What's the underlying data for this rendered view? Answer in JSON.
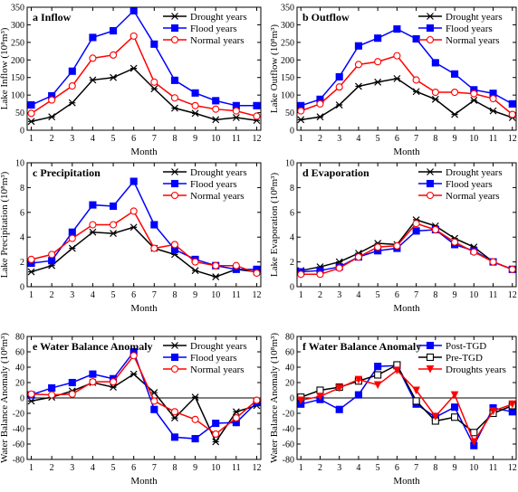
{
  "styles": {
    "Drought years": {
      "color": "#000000",
      "marker": "x",
      "fill": "none"
    },
    "Flood years": {
      "color": "#0000ff",
      "marker": "square",
      "fill": "#0000ff"
    },
    "Normal years": {
      "color": "#ff0000",
      "marker": "circle",
      "fill": "#ffffff"
    },
    "Post-TGD": {
      "color": "#0000ff",
      "marker": "square",
      "fill": "#0000ff"
    },
    "Pre-TGD": {
      "color": "#000000",
      "marker": "square",
      "fill": "#ffffff"
    },
    "Droughts years": {
      "color": "#ff0000",
      "marker": "triangle",
      "fill": "#ff0000"
    }
  },
  "chart_data": [
    {
      "panel": "a",
      "type": "line",
      "title": "Inflow",
      "xlabel": "Month",
      "ylabel": "Lake Inflow (10⁸m³)",
      "x": [
        1,
        2,
        3,
        4,
        5,
        6,
        7,
        8,
        9,
        10,
        11,
        12
      ],
      "xlim": [
        0.8,
        12.2
      ],
      "ylim": [
        0,
        350
      ],
      "yticks": [
        0,
        50,
        100,
        150,
        200,
        250,
        300,
        350
      ],
      "series": [
        {
          "name": "Drought years",
          "values": [
            25,
            38,
            78,
            143,
            150,
            176,
            118,
            63,
            48,
            30,
            36,
            28
          ]
        },
        {
          "name": "Flood years",
          "values": [
            72,
            98,
            168,
            264,
            283,
            340,
            245,
            142,
            106,
            84,
            70,
            70
          ]
        },
        {
          "name": "Normal years",
          "values": [
            48,
            86,
            126,
            205,
            214,
            268,
            137,
            92,
            70,
            60,
            55,
            40
          ]
        }
      ]
    },
    {
      "panel": "b",
      "type": "line",
      "title": "Outflow",
      "xlabel": "Month",
      "ylabel": "Lake Outflow (10⁸m³)",
      "x": [
        1,
        2,
        3,
        4,
        5,
        6,
        7,
        8,
        9,
        10,
        11,
        12
      ],
      "xlim": [
        0.8,
        12.2
      ],
      "ylim": [
        0,
        350
      ],
      "yticks": [
        0,
        50,
        100,
        150,
        200,
        250,
        300,
        350
      ],
      "series": [
        {
          "name": "Drought years",
          "values": [
            30,
            38,
            72,
            125,
            137,
            147,
            110,
            88,
            45,
            85,
            55,
            36
          ]
        },
        {
          "name": "Flood years",
          "values": [
            70,
            88,
            152,
            240,
            262,
            288,
            260,
            192,
            160,
            115,
            105,
            75
          ]
        },
        {
          "name": "Normal years",
          "values": [
            55,
            75,
            123,
            187,
            195,
            212,
            143,
            108,
            108,
            104,
            90,
            45
          ]
        }
      ]
    },
    {
      "panel": "c",
      "type": "line",
      "title": "Precipitation",
      "xlabel": "Month",
      "ylabel": "Lake Precipitation (10⁸m³)",
      "x": [
        1,
        2,
        3,
        4,
        5,
        6,
        7,
        8,
        9,
        10,
        11,
        12
      ],
      "xlim": [
        0.8,
        12.2
      ],
      "ylim": [
        0,
        10
      ],
      "yticks": [
        0,
        2,
        4,
        6,
        8,
        10
      ],
      "series": [
        {
          "name": "Drought years",
          "values": [
            1.2,
            1.7,
            3.1,
            4.4,
            4.3,
            4.8,
            3.1,
            2.6,
            1.3,
            0.8,
            1.4,
            1.2
          ]
        },
        {
          "name": "Flood years",
          "values": [
            1.9,
            2.1,
            4.4,
            6.6,
            6.5,
            8.5,
            5.0,
            3.0,
            2.2,
            1.7,
            1.4,
            1.4
          ]
        },
        {
          "name": "Normal years",
          "values": [
            2.2,
            2.6,
            3.9,
            5.0,
            5.0,
            6.1,
            3.1,
            3.4,
            2.0,
            1.7,
            1.7,
            1.1
          ]
        }
      ]
    },
    {
      "panel": "d",
      "type": "line",
      "title": "Evaporation",
      "xlabel": "Month",
      "ylabel": "Lake Evaporation (10⁸m³)",
      "x": [
        1,
        2,
        3,
        4,
        5,
        6,
        7,
        8,
        9,
        10,
        11,
        12
      ],
      "xlim": [
        0.8,
        12.2
      ],
      "ylim": [
        0,
        10
      ],
      "yticks": [
        0,
        2,
        4,
        6,
        8,
        10
      ],
      "series": [
        {
          "name": "Drought years",
          "values": [
            1.3,
            1.6,
            2.0,
            2.7,
            3.5,
            3.4,
            5.4,
            4.9,
            3.9,
            3.2,
            2.0,
            1.4
          ]
        },
        {
          "name": "Flood years",
          "values": [
            1.2,
            1.3,
            1.6,
            2.4,
            2.9,
            3.1,
            4.5,
            4.6,
            3.4,
            2.9,
            2.0,
            1.4
          ]
        },
        {
          "name": "Normal years",
          "values": [
            1.0,
            1.0,
            1.5,
            2.4,
            3.2,
            3.3,
            5.1,
            4.6,
            3.6,
            2.8,
            2.0,
            1.4
          ]
        }
      ]
    },
    {
      "panel": "e",
      "type": "line",
      "title": "Water Balance Anomaly",
      "xlabel": "Month",
      "ylabel": "Water Balance Anomaly (10⁸m³)",
      "x": [
        1,
        2,
        3,
        4,
        5,
        6,
        7,
        8,
        9,
        10,
        11,
        12
      ],
      "xlim": [
        0.8,
        12.2
      ],
      "ylim": [
        -80,
        80
      ],
      "yticks": [
        -80,
        -60,
        -40,
        -20,
        0,
        20,
        40,
        60,
        80
      ],
      "zero_line": true,
      "series": [
        {
          "name": "Drought years",
          "values": [
            -4,
            1,
            9,
            20,
            14,
            31,
            7,
            -26,
            1,
            -57,
            -18,
            -10
          ]
        },
        {
          "name": "Flood years",
          "values": [
            4,
            13,
            20,
            31,
            25,
            60,
            -15,
            -51,
            -53,
            -33,
            -32,
            -6
          ]
        },
        {
          "name": "Normal years",
          "values": [
            5,
            4,
            5,
            21,
            21,
            55,
            -4,
            -18,
            -28,
            -47,
            -26,
            -3
          ]
        }
      ]
    },
    {
      "panel": "f",
      "type": "line",
      "title": "Water Balance Anomaly",
      "xlabel": "Month",
      "ylabel": "Water Balance Anomaly (10⁸m³)",
      "x": [
        1,
        2,
        3,
        4,
        5,
        6,
        7,
        8,
        9,
        10,
        11,
        12
      ],
      "xlim": [
        0.8,
        12.2
      ],
      "ylim": [
        -80,
        80
      ],
      "yticks": [
        -80,
        -60,
        -40,
        -20,
        0,
        20,
        40,
        60,
        80
      ],
      "zero_line": true,
      "series": [
        {
          "name": "Post-TGD",
          "values": [
            -8,
            -2,
            -15,
            4,
            41,
            42,
            -8,
            -25,
            -12,
            -62,
            -13,
            -18
          ]
        },
        {
          "name": "Pre-TGD",
          "values": [
            1,
            10,
            14,
            22,
            30,
            43,
            -4,
            -30,
            -25,
            -45,
            -20,
            -10
          ]
        },
        {
          "name": "Droughts years",
          "values": [
            -3,
            2,
            13,
            24,
            17,
            36,
            10,
            -24,
            4,
            -57,
            -17,
            -8
          ]
        }
      ]
    }
  ]
}
